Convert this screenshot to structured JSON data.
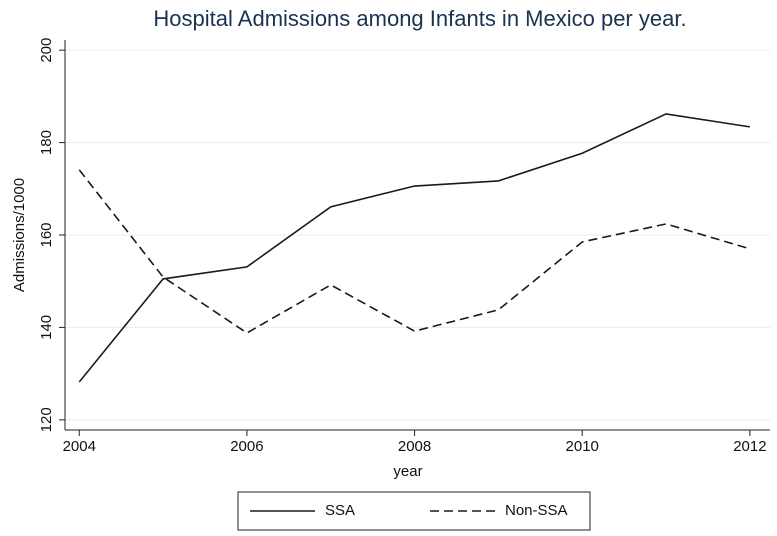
{
  "chart_data": {
    "type": "line",
    "title": "Hospital Admissions among Infants in Mexico per year.",
    "x_label": "year",
    "y_label": "Admissions/1000",
    "x": [
      2004,
      2005,
      2006,
      2007,
      2008,
      2009,
      2010,
      2011,
      2012
    ],
    "series": [
      {
        "name": "SSA",
        "color": "#1a1a1a",
        "dash": "solid",
        "values": [
          128.2,
          150.5,
          153.1,
          166.1,
          170.6,
          171.7,
          177.7,
          186.2,
          183.4
        ]
      },
      {
        "name": "Non-SSA",
        "color": "#1a1a1a",
        "dash": "dashed",
        "values": [
          174.1,
          150.9,
          138.8,
          149.2,
          139.2,
          143.8,
          158.5,
          162.4,
          157.0
        ]
      }
    ],
    "xlim": [
      2003.83,
      2012.24
    ],
    "xticks": [
      2004,
      2006,
      2008,
      2010,
      2012
    ],
    "ylim": [
      117.8,
      202.2
    ],
    "yticks": [
      120,
      140,
      160,
      180,
      200
    ],
    "grid": true,
    "legend": "bottom"
  }
}
